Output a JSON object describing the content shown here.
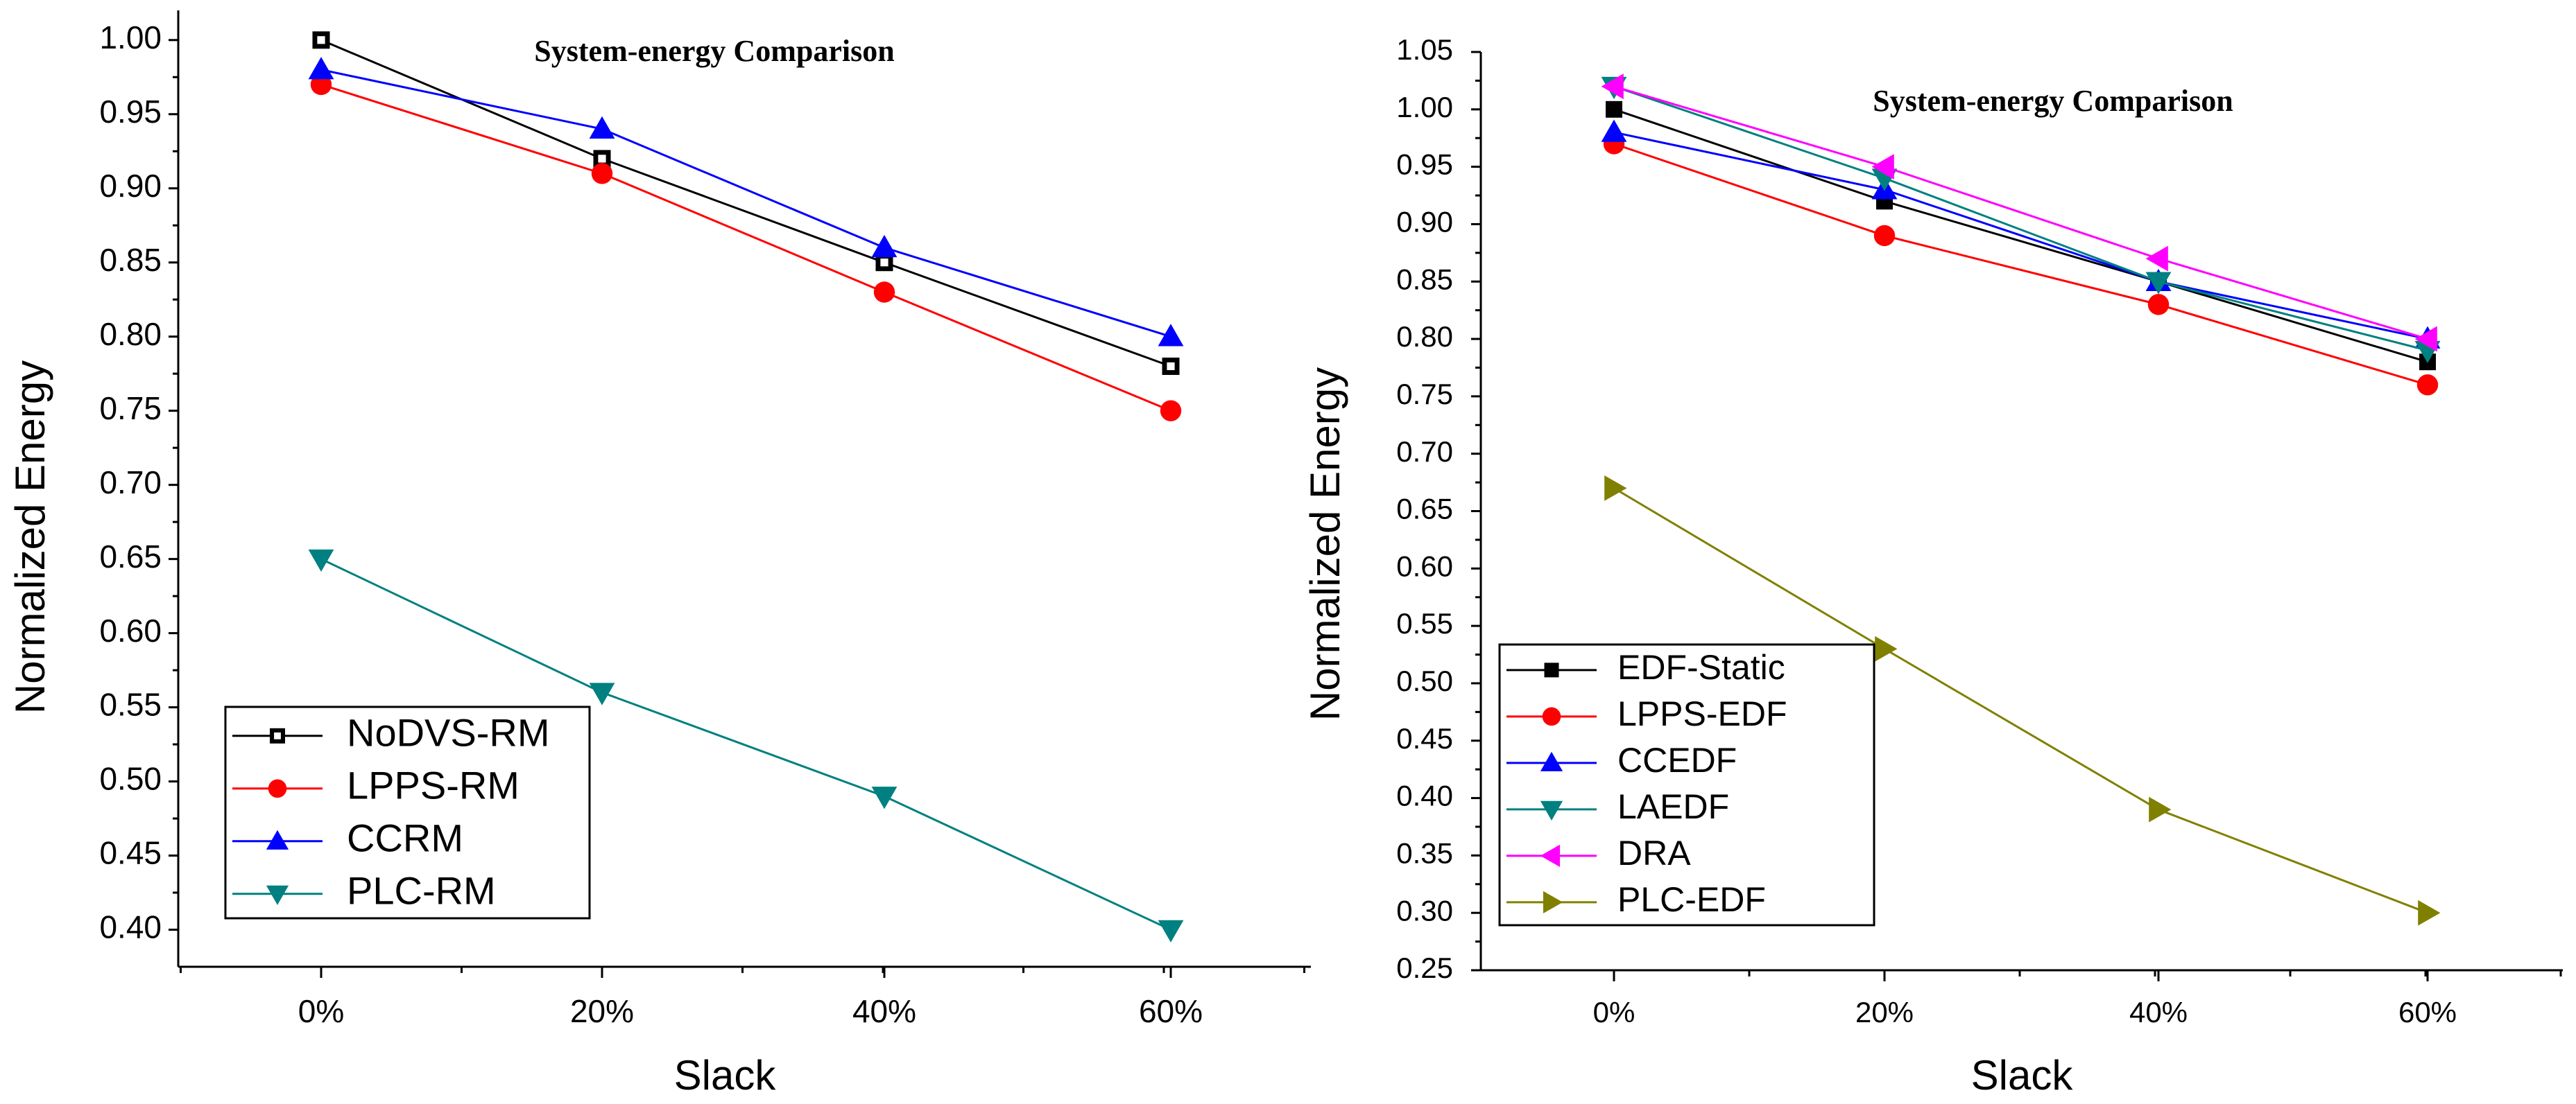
{
  "chart_data": [
    {
      "type": "line",
      "title": "System-energy Comparison",
      "xlabel": "Slack",
      "ylabel": "Normalized Energy",
      "categories": [
        "0%",
        "20%",
        "40%",
        "60%"
      ],
      "ylim": [
        0.375,
        1.02
      ],
      "yticks": [
        "0.40",
        "0.45",
        "0.50",
        "0.55",
        "0.60",
        "0.65",
        "0.70",
        "0.75",
        "0.80",
        "0.85",
        "0.90",
        "0.95",
        "1.00"
      ],
      "grid": false,
      "legend_position": "bottom-left",
      "series": [
        {
          "name": "NoDVS-RM",
          "values": [
            1.0,
            0.92,
            0.85,
            0.78
          ],
          "color": "#000000",
          "marker": "square-open"
        },
        {
          "name": "LPPS-RM",
          "values": [
            0.97,
            0.91,
            0.83,
            0.75
          ],
          "color": "#ff0000",
          "marker": "circle"
        },
        {
          "name": "CCRM",
          "values": [
            0.98,
            0.94,
            0.86,
            0.8
          ],
          "color": "#0000ff",
          "marker": "triangle-up"
        },
        {
          "name": "PLC-RM",
          "values": [
            0.65,
            0.56,
            0.49,
            0.4
          ],
          "color": "#008080",
          "marker": "triangle-down"
        }
      ]
    },
    {
      "type": "line",
      "title": "System-energy Comparison",
      "xlabel": "Slack",
      "ylabel": "Normalized Energy",
      "categories": [
        "0%",
        "20%",
        "40%",
        "60%"
      ],
      "ylim": [
        0.25,
        1.05
      ],
      "yticks": [
        "0.25",
        "0.30",
        "0.35",
        "0.40",
        "0.45",
        "0.50",
        "0.55",
        "0.60",
        "0.65",
        "0.70",
        "0.75",
        "0.80",
        "0.85",
        "0.90",
        "0.95",
        "1.00",
        "1.05"
      ],
      "grid": false,
      "legend_position": "bottom-left",
      "series": [
        {
          "name": "EDF-Static",
          "values": [
            1.0,
            0.92,
            0.85,
            0.78
          ],
          "color": "#000000",
          "marker": "square"
        },
        {
          "name": "LPPS-EDF",
          "values": [
            0.97,
            0.89,
            0.83,
            0.76
          ],
          "color": "#ff0000",
          "marker": "circle"
        },
        {
          "name": "CCEDF",
          "values": [
            0.98,
            0.93,
            0.85,
            0.8
          ],
          "color": "#0000ff",
          "marker": "triangle-up"
        },
        {
          "name": "LAEDF",
          "values": [
            1.02,
            0.94,
            0.85,
            0.79
          ],
          "color": "#008080",
          "marker": "triangle-down"
        },
        {
          "name": "DRA",
          "values": [
            1.02,
            0.95,
            0.87,
            0.8
          ],
          "color": "#ff00ff",
          "marker": "triangle-left"
        },
        {
          "name": "PLC-EDF",
          "values": [
            0.67,
            0.53,
            0.39,
            0.3
          ],
          "color": "#808000",
          "marker": "triangle-right"
        }
      ]
    }
  ]
}
